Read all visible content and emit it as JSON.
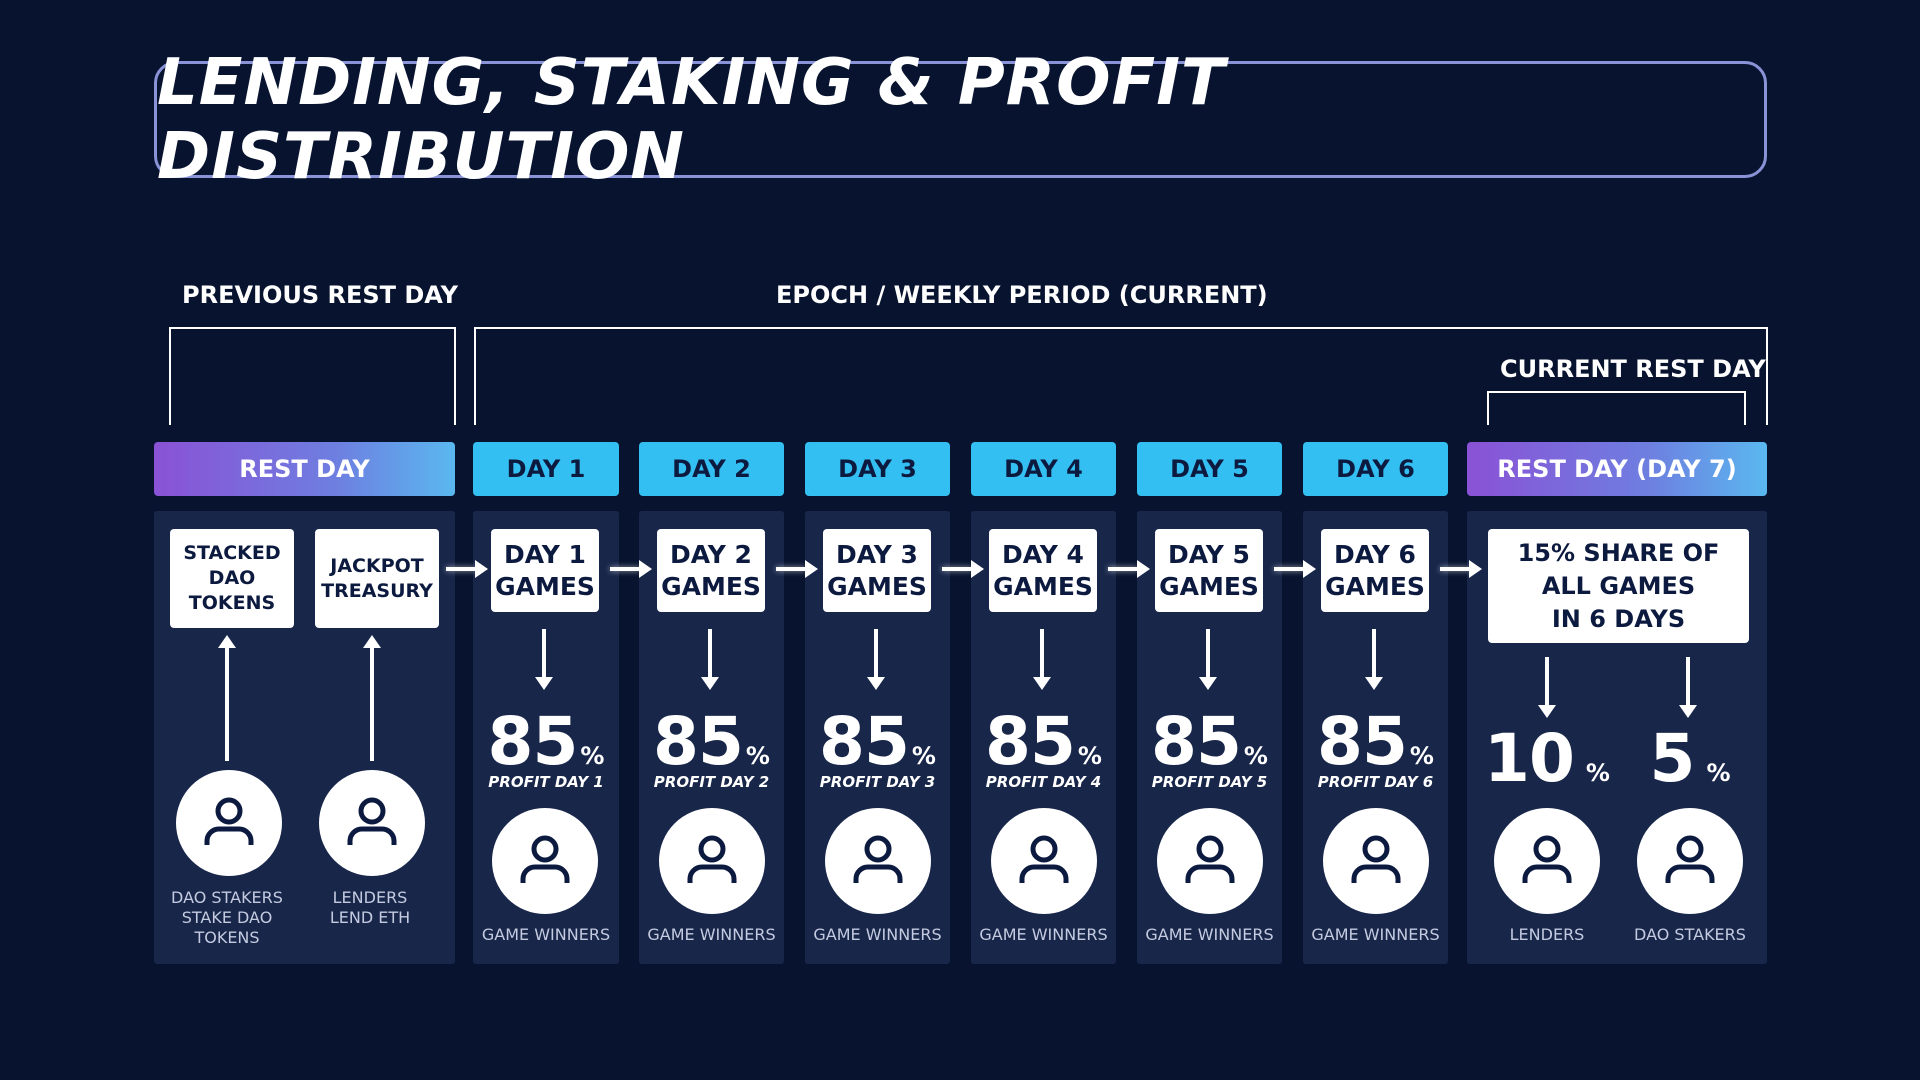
{
  "title": "LENDING, STAKING & PROFIT DISTRIBUTION",
  "sections": {
    "previous_rest_day": "PREVIOUS REST DAY",
    "epoch": "EPOCH / WEEKLY PERIOD (CURRENT)",
    "current_rest_day": "CURRENT REST DAY"
  },
  "rest_day": {
    "header": "REST DAY",
    "boxes": [
      {
        "lines": [
          "STACKED",
          "DAO",
          "TOKENS"
        ],
        "caption": [
          "DAO STAKERS",
          "STAKE DAO",
          "TOKENS"
        ]
      },
      {
        "lines": [
          "JACKPOT",
          "TREASURY"
        ],
        "caption": [
          "LENDERS",
          "LEND ETH"
        ]
      }
    ]
  },
  "days": [
    {
      "header": "DAY 1",
      "box": [
        "DAY 1",
        "GAMES"
      ],
      "percent": "85",
      "percent_sign": "%",
      "profit_label": "PROFIT DAY 1",
      "caption": "GAME WINNERS"
    },
    {
      "header": "DAY 2",
      "box": [
        "DAY 2",
        "GAMES"
      ],
      "percent": "85",
      "percent_sign": "%",
      "profit_label": "PROFIT DAY 2",
      "caption": "GAME WINNERS"
    },
    {
      "header": "DAY 3",
      "box": [
        "DAY 3",
        "GAMES"
      ],
      "percent": "85",
      "percent_sign": "%",
      "profit_label": "PROFIT DAY 3",
      "caption": "GAME WINNERS"
    },
    {
      "header": "DAY 4",
      "box": [
        "DAY 4",
        "GAMES"
      ],
      "percent": "85",
      "percent_sign": "%",
      "profit_label": "PROFIT DAY 4",
      "caption": "GAME WINNERS"
    },
    {
      "header": "DAY 5",
      "box": [
        "DAY 5",
        "GAMES"
      ],
      "percent": "85",
      "percent_sign": "%",
      "profit_label": "PROFIT DAY 5",
      "caption": "GAME WINNERS"
    },
    {
      "header": "DAY 6",
      "box": [
        "DAY 6",
        "GAMES"
      ],
      "percent": "85",
      "percent_sign": "%",
      "profit_label": "PROFIT DAY 6",
      "caption": "GAME WINNERS"
    }
  ],
  "rest_day_7": {
    "header": "REST DAY (DAY 7)",
    "box": [
      "15% SHARE OF",
      "ALL GAMES",
      "IN 6 DAYS"
    ],
    "splits": [
      {
        "percent": "10",
        "percent_sign": "%",
        "caption": "LENDERS"
      },
      {
        "percent": "5",
        "percent_sign": "%",
        "caption": "DAO STAKERS"
      }
    ]
  },
  "colors": {
    "background": "#08142f",
    "column": "#18264a",
    "day_header": "#34bff2",
    "rest_gradient_start": "#8a52d6",
    "rest_gradient_end": "#5ab8ef",
    "title_border": "#8a93d8"
  },
  "icons": {
    "avatar": "user-icon",
    "flow": "arrow-icon"
  }
}
